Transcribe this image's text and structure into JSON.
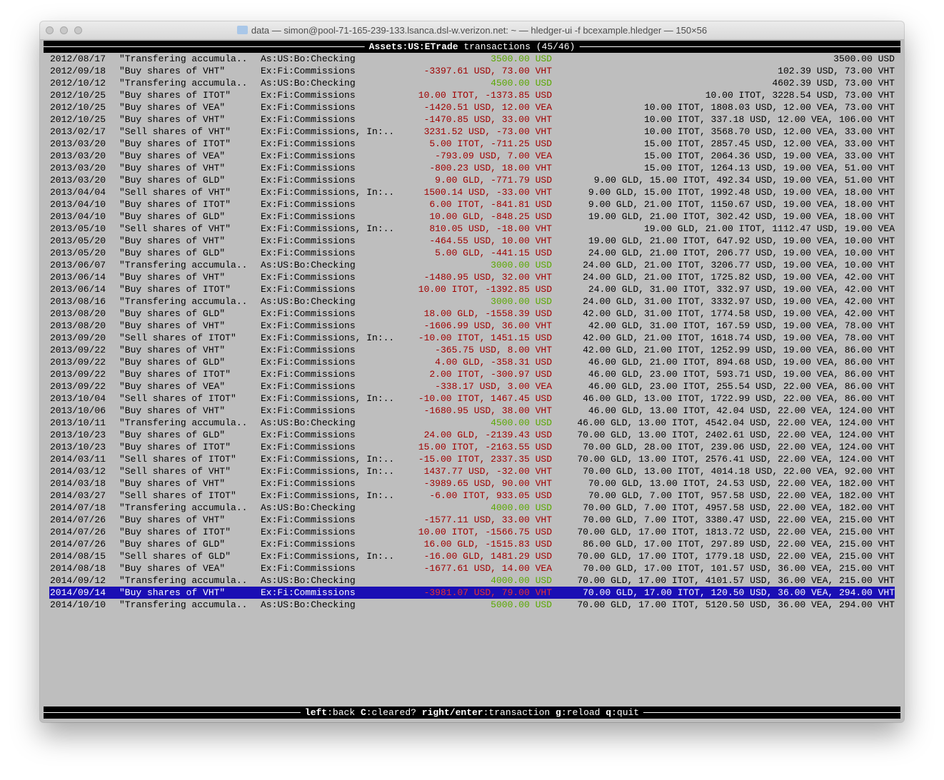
{
  "window": {
    "title": "data — simon@pool-71-165-239-133.lsanca.dsl-w.verizon.net: ~ — hledger-ui -f bcexample.hledger — 150×56"
  },
  "header": {
    "account": "Assets:US:ETrade",
    "suffix": " transactions (45/46)"
  },
  "colors": {
    "positive": "#5aa800",
    "negative": "#a00000",
    "selected_bg": "#1a0eb4",
    "background": "#bebebe"
  },
  "selected_index": 44,
  "rows": [
    [
      "2012/08/17",
      "\"Transfering accumula..",
      "As:US:Bo:Checking",
      "3500.00 USD",
      "3500.00 USD"
    ],
    [
      "2012/09/18",
      "\"Buy shares of VHT\"",
      "Ex:Fi:Commissions",
      "-3397.61 USD, 73.00 VHT",
      "102.39 USD, 73.00 VHT"
    ],
    [
      "2012/10/12",
      "\"Transfering accumula..",
      "As:US:Bo:Checking",
      "4500.00 USD",
      "4602.39 USD, 73.00 VHT"
    ],
    [
      "2012/10/25",
      "\"Buy shares of ITOT\"",
      "Ex:Fi:Commissions",
      "10.00 ITOT, -1373.85 USD",
      "10.00 ITOT, 3228.54 USD, 73.00 VHT"
    ],
    [
      "2012/10/25",
      "\"Buy shares of VEA\"",
      "Ex:Fi:Commissions",
      "-1420.51 USD, 12.00 VEA",
      "10.00 ITOT, 1808.03 USD, 12.00 VEA, 73.00 VHT"
    ],
    [
      "2012/10/25",
      "\"Buy shares of VHT\"",
      "Ex:Fi:Commissions",
      "-1470.85 USD, 33.00 VHT",
      "10.00 ITOT, 337.18 USD, 12.00 VEA, 106.00 VHT"
    ],
    [
      "2013/02/17",
      "\"Sell shares of VHT\"",
      "Ex:Fi:Commissions, In:..",
      "3231.52 USD, -73.00 VHT",
      "10.00 ITOT, 3568.70 USD, 12.00 VEA, 33.00 VHT"
    ],
    [
      "2013/03/20",
      "\"Buy shares of ITOT\"",
      "Ex:Fi:Commissions",
      "5.00 ITOT, -711.25 USD",
      "15.00 ITOT, 2857.45 USD, 12.00 VEA, 33.00 VHT"
    ],
    [
      "2013/03/20",
      "\"Buy shares of VEA\"",
      "Ex:Fi:Commissions",
      "-793.09 USD, 7.00 VEA",
      "15.00 ITOT, 2064.36 USD, 19.00 VEA, 33.00 VHT"
    ],
    [
      "2013/03/20",
      "\"Buy shares of VHT\"",
      "Ex:Fi:Commissions",
      "-800.23 USD, 18.00 VHT",
      "15.00 ITOT, 1264.13 USD, 19.00 VEA, 51.00 VHT"
    ],
    [
      "2013/03/20",
      "\"Buy shares of GLD\"",
      "Ex:Fi:Commissions",
      "9.00 GLD, -771.79 USD",
      "9.00 GLD, 15.00 ITOT, 492.34 USD, 19.00 VEA, 51.00 VHT"
    ],
    [
      "2013/04/04",
      "\"Sell shares of VHT\"",
      "Ex:Fi:Commissions, In:..",
      "1500.14 USD, -33.00 VHT",
      "9.00 GLD, 15.00 ITOT, 1992.48 USD, 19.00 VEA, 18.00 VHT"
    ],
    [
      "2013/04/10",
      "\"Buy shares of ITOT\"",
      "Ex:Fi:Commissions",
      "6.00 ITOT, -841.81 USD",
      "9.00 GLD, 21.00 ITOT, 1150.67 USD, 19.00 VEA, 18.00 VHT"
    ],
    [
      "2013/04/10",
      "\"Buy shares of GLD\"",
      "Ex:Fi:Commissions",
      "10.00 GLD, -848.25 USD",
      "19.00 GLD, 21.00 ITOT, 302.42 USD, 19.00 VEA, 18.00 VHT"
    ],
    [
      "2013/05/10",
      "\"Sell shares of VHT\"",
      "Ex:Fi:Commissions, In:..",
      "810.05 USD, -18.00 VHT",
      "19.00 GLD, 21.00 ITOT, 1112.47 USD, 19.00 VEA"
    ],
    [
      "2013/05/20",
      "\"Buy shares of VHT\"",
      "Ex:Fi:Commissions",
      "-464.55 USD, 10.00 VHT",
      "19.00 GLD, 21.00 ITOT, 647.92 USD, 19.00 VEA, 10.00 VHT"
    ],
    [
      "2013/05/20",
      "\"Buy shares of GLD\"",
      "Ex:Fi:Commissions",
      "5.00 GLD, -441.15 USD",
      "24.00 GLD, 21.00 ITOT, 206.77 USD, 19.00 VEA, 10.00 VHT"
    ],
    [
      "2013/06/07",
      "\"Transfering accumula..",
      "As:US:Bo:Checking",
      "3000.00 USD",
      "24.00 GLD, 21.00 ITOT, 3206.77 USD, 19.00 VEA, 10.00 VHT"
    ],
    [
      "2013/06/14",
      "\"Buy shares of VHT\"",
      "Ex:Fi:Commissions",
      "-1480.95 USD, 32.00 VHT",
      "24.00 GLD, 21.00 ITOT, 1725.82 USD, 19.00 VEA, 42.00 VHT"
    ],
    [
      "2013/06/14",
      "\"Buy shares of ITOT\"",
      "Ex:Fi:Commissions",
      "10.00 ITOT, -1392.85 USD",
      "24.00 GLD, 31.00 ITOT, 332.97 USD, 19.00 VEA, 42.00 VHT"
    ],
    [
      "2013/08/16",
      "\"Transfering accumula..",
      "As:US:Bo:Checking",
      "3000.00 USD",
      "24.00 GLD, 31.00 ITOT, 3332.97 USD, 19.00 VEA, 42.00 VHT"
    ],
    [
      "2013/08/20",
      "\"Buy shares of GLD\"",
      "Ex:Fi:Commissions",
      "18.00 GLD, -1558.39 USD",
      "42.00 GLD, 31.00 ITOT, 1774.58 USD, 19.00 VEA, 42.00 VHT"
    ],
    [
      "2013/08/20",
      "\"Buy shares of VHT\"",
      "Ex:Fi:Commissions",
      "-1606.99 USD, 36.00 VHT",
      "42.00 GLD, 31.00 ITOT, 167.59 USD, 19.00 VEA, 78.00 VHT"
    ],
    [
      "2013/09/20",
      "\"Sell shares of ITOT\"",
      "Ex:Fi:Commissions, In:..",
      "-10.00 ITOT, 1451.15 USD",
      "42.00 GLD, 21.00 ITOT, 1618.74 USD, 19.00 VEA, 78.00 VHT"
    ],
    [
      "2013/09/22",
      "\"Buy shares of VHT\"",
      "Ex:Fi:Commissions",
      "-365.75 USD, 8.00 VHT",
      "42.00 GLD, 21.00 ITOT, 1252.99 USD, 19.00 VEA, 86.00 VHT"
    ],
    [
      "2013/09/22",
      "\"Buy shares of GLD\"",
      "Ex:Fi:Commissions",
      "4.00 GLD, -358.31 USD",
      "46.00 GLD, 21.00 ITOT, 894.68 USD, 19.00 VEA, 86.00 VHT"
    ],
    [
      "2013/09/22",
      "\"Buy shares of ITOT\"",
      "Ex:Fi:Commissions",
      "2.00 ITOT, -300.97 USD",
      "46.00 GLD, 23.00 ITOT, 593.71 USD, 19.00 VEA, 86.00 VHT"
    ],
    [
      "2013/09/22",
      "\"Buy shares of VEA\"",
      "Ex:Fi:Commissions",
      "-338.17 USD, 3.00 VEA",
      "46.00 GLD, 23.00 ITOT, 255.54 USD, 22.00 VEA, 86.00 VHT"
    ],
    [
      "2013/10/04",
      "\"Sell shares of ITOT\"",
      "Ex:Fi:Commissions, In:..",
      "-10.00 ITOT, 1467.45 USD",
      "46.00 GLD, 13.00 ITOT, 1722.99 USD, 22.00 VEA, 86.00 VHT"
    ],
    [
      "2013/10/06",
      "\"Buy shares of VHT\"",
      "Ex:Fi:Commissions",
      "-1680.95 USD, 38.00 VHT",
      "46.00 GLD, 13.00 ITOT, 42.04 USD, 22.00 VEA, 124.00 VHT"
    ],
    [
      "2013/10/11",
      "\"Transfering accumula..",
      "As:US:Bo:Checking",
      "4500.00 USD",
      "46.00 GLD, 13.00 ITOT, 4542.04 USD, 22.00 VEA, 124.00 VHT"
    ],
    [
      "2013/10/23",
      "\"Buy shares of GLD\"",
      "Ex:Fi:Commissions",
      "24.00 GLD, -2139.43 USD",
      "70.00 GLD, 13.00 ITOT, 2402.61 USD, 22.00 VEA, 124.00 VHT"
    ],
    [
      "2013/10/23",
      "\"Buy shares of ITOT\"",
      "Ex:Fi:Commissions",
      "15.00 ITOT, -2163.55 USD",
      "70.00 GLD, 28.00 ITOT, 239.06 USD, 22.00 VEA, 124.00 VHT"
    ],
    [
      "2014/03/11",
      "\"Sell shares of ITOT\"",
      "Ex:Fi:Commissions, In:..",
      "-15.00 ITOT, 2337.35 USD",
      "70.00 GLD, 13.00 ITOT, 2576.41 USD, 22.00 VEA, 124.00 VHT"
    ],
    [
      "2014/03/12",
      "\"Sell shares of VHT\"",
      "Ex:Fi:Commissions, In:..",
      "1437.77 USD, -32.00 VHT",
      "70.00 GLD, 13.00 ITOT, 4014.18 USD, 22.00 VEA, 92.00 VHT"
    ],
    [
      "2014/03/18",
      "\"Buy shares of VHT\"",
      "Ex:Fi:Commissions",
      "-3989.65 USD, 90.00 VHT",
      "70.00 GLD, 13.00 ITOT, 24.53 USD, 22.00 VEA, 182.00 VHT"
    ],
    [
      "2014/03/27",
      "\"Sell shares of ITOT\"",
      "Ex:Fi:Commissions, In:..",
      "-6.00 ITOT, 933.05 USD",
      "70.00 GLD, 7.00 ITOT, 957.58 USD, 22.00 VEA, 182.00 VHT"
    ],
    [
      "2014/07/18",
      "\"Transfering accumula..",
      "As:US:Bo:Checking",
      "4000.00 USD",
      "70.00 GLD, 7.00 ITOT, 4957.58 USD, 22.00 VEA, 182.00 VHT"
    ],
    [
      "2014/07/26",
      "\"Buy shares of VHT\"",
      "Ex:Fi:Commissions",
      "-1577.11 USD, 33.00 VHT",
      "70.00 GLD, 7.00 ITOT, 3380.47 USD, 22.00 VEA, 215.00 VHT"
    ],
    [
      "2014/07/26",
      "\"Buy shares of ITOT\"",
      "Ex:Fi:Commissions",
      "10.00 ITOT, -1566.75 USD",
      "70.00 GLD, 17.00 ITOT, 1813.72 USD, 22.00 VEA, 215.00 VHT"
    ],
    [
      "2014/07/26",
      "\"Buy shares of GLD\"",
      "Ex:Fi:Commissions",
      "16.00 GLD, -1515.83 USD",
      "86.00 GLD, 17.00 ITOT, 297.89 USD, 22.00 VEA, 215.00 VHT"
    ],
    [
      "2014/08/15",
      "\"Sell shares of GLD\"",
      "Ex:Fi:Commissions, In:..",
      "-16.00 GLD, 1481.29 USD",
      "70.00 GLD, 17.00 ITOT, 1779.18 USD, 22.00 VEA, 215.00 VHT"
    ],
    [
      "2014/08/18",
      "\"Buy shares of VEA\"",
      "Ex:Fi:Commissions",
      "-1677.61 USD, 14.00 VEA",
      "70.00 GLD, 17.00 ITOT, 101.57 USD, 36.00 VEA, 215.00 VHT"
    ],
    [
      "2014/09/12",
      "\"Transfering accumula..",
      "As:US:Bo:Checking",
      "4000.00 USD",
      "70.00 GLD, 17.00 ITOT, 4101.57 USD, 36.00 VEA, 215.00 VHT"
    ],
    [
      "2014/09/14",
      "\"Buy shares of VHT\"",
      "Ex:Fi:Commissions",
      "-3981.07 USD, 79.00 VHT",
      "70.00 GLD, 17.00 ITOT, 120.50 USD, 36.00 VEA, 294.00 VHT"
    ],
    [
      "2014/10/10",
      "\"Transfering accumula..",
      "As:US:Bo:Checking",
      "5000.00 USD",
      "70.00 GLD, 17.00 ITOT, 5120.50 USD, 36.00 VEA, 294.00 VHT"
    ]
  ],
  "footer": [
    {
      "key": "left",
      "label": ":back"
    },
    {
      "key": "C",
      "label": ":cleared?"
    },
    {
      "key": "right/enter",
      "label": ":transaction"
    },
    {
      "key": "g",
      "label": ":reload"
    },
    {
      "key": "q",
      "label": ":quit"
    }
  ]
}
